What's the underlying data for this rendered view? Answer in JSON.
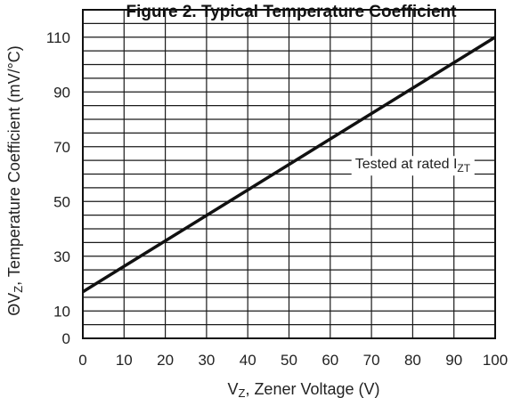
{
  "chart_data": {
    "type": "line",
    "title": "Figure 2. Typical Temperature Coefficient",
    "xlabel": {
      "sym": "V",
      "sub": "Z",
      "rest": ", Zener Voltage (V)"
    },
    "ylabel": {
      "sym": "ΘV",
      "sub": "Z",
      "rest": ", Temperature Coefficient (mV/°C)"
    },
    "xlim": [
      0,
      100
    ],
    "ylim": [
      0,
      120
    ],
    "x_major_ticks": [
      0,
      10,
      20,
      30,
      40,
      50,
      60,
      70,
      80,
      90,
      100
    ],
    "y_major_ticks": [
      0,
      10,
      30,
      50,
      70,
      90,
      110
    ],
    "y_grid_step": 5,
    "grid": true,
    "series": [
      {
        "x": [
          0,
          100
        ],
        "y": [
          17,
          110
        ]
      }
    ],
    "annotations": [
      {
        "text": "Tested at rated I",
        "sub": "ZT",
        "x": 80,
        "y": 64
      }
    ]
  },
  "colors": {
    "line": "#111111",
    "grid": "#1a1a1a",
    "frame": "#111111"
  }
}
